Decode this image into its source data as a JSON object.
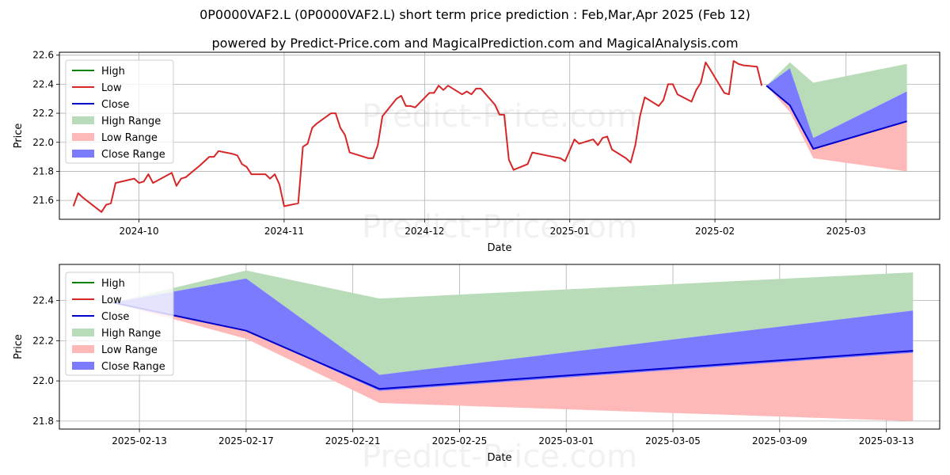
{
  "title": "0P0000VAF2.L (0P0000VAF2.L) short term price prediction : Feb,Mar,Apr 2025 (Feb 12)",
  "subtitle": "powered by Predict-Price.com and MagicalPrediction.com and MagicalAnalysis.com",
  "watermark": "Predict-Price.com",
  "colors": {
    "high": "#008000",
    "low": "#d62728",
    "close": "#0000cc",
    "high_range": "#b8dcb8",
    "low_range": "#ffb8b8",
    "close_range": "#7b7bff"
  },
  "chart_data": [
    {
      "type": "line",
      "xlabel": "Date",
      "ylabel": "Price",
      "xlim": [
        "2024-09-14",
        "2025-03-21"
      ],
      "ylim": [
        21.47,
        22.62
      ],
      "yticks": [
        21.6,
        21.8,
        22.0,
        22.2,
        22.4,
        22.6
      ],
      "ytick_labels": [
        "21.6",
        "21.8",
        "22.0",
        "22.2",
        "22.4",
        "22.6"
      ],
      "xticks": [
        "2024-10-01",
        "2024-11-01",
        "2024-12-01",
        "2025-01-01",
        "2025-02-01",
        "2025-03-01"
      ],
      "xtick_labels": [
        "2024-10",
        "2024-11",
        "2024-12",
        "2025-01",
        "2025-02",
        "2025-03"
      ],
      "legend": [
        "High",
        "Low",
        "Close",
        "High Range",
        "Low Range",
        "Close Range"
      ],
      "legend_position": "upper-left",
      "grid": true,
      "history": {
        "name": "Low",
        "x": [
          "2024-09-17",
          "2024-09-18",
          "2024-09-19",
          "2024-09-23",
          "2024-09-24",
          "2024-09-25",
          "2024-09-26",
          "2024-09-30",
          "2024-10-01",
          "2024-10-02",
          "2024-10-03",
          "2024-10-04",
          "2024-10-08",
          "2024-10-09",
          "2024-10-10",
          "2024-10-11",
          "2024-10-14",
          "2024-10-15",
          "2024-10-16",
          "2024-10-17",
          "2024-10-18",
          "2024-10-21",
          "2024-10-22",
          "2024-10-23",
          "2024-10-24",
          "2024-10-25",
          "2024-10-28",
          "2024-10-29",
          "2024-10-30",
          "2024-10-31",
          "2024-11-01",
          "2024-11-04",
          "2024-11-05",
          "2024-11-06",
          "2024-11-07",
          "2024-11-08",
          "2024-11-11",
          "2024-11-12",
          "2024-11-13",
          "2024-11-14",
          "2024-11-15",
          "2024-11-18",
          "2024-11-19",
          "2024-11-20",
          "2024-11-21",
          "2024-11-22",
          "2024-11-25",
          "2024-11-26",
          "2024-11-27",
          "2024-11-28",
          "2024-11-29",
          "2024-12-02",
          "2024-12-03",
          "2024-12-04",
          "2024-12-05",
          "2024-12-06",
          "2024-12-09",
          "2024-12-10",
          "2024-12-11",
          "2024-12-12",
          "2024-12-13",
          "2024-12-16",
          "2024-12-17",
          "2024-12-18",
          "2024-12-19",
          "2024-12-20",
          "2024-12-23",
          "2024-12-24",
          "2024-12-27",
          "2024-12-30",
          "2024-12-31",
          "2025-01-02",
          "2025-01-03",
          "2025-01-06",
          "2025-01-07",
          "2025-01-08",
          "2025-01-09",
          "2025-01-10",
          "2025-01-13",
          "2025-01-14",
          "2025-01-15",
          "2025-01-16",
          "2025-01-17",
          "2025-01-20",
          "2025-01-21",
          "2025-01-22",
          "2025-01-23",
          "2025-01-24",
          "2025-01-27",
          "2025-01-28",
          "2025-01-29",
          "2025-01-30",
          "2025-01-31",
          "2025-02-03",
          "2025-02-04",
          "2025-02-05",
          "2025-02-06",
          "2025-02-07",
          "2025-02-10",
          "2025-02-11"
        ],
        "y": [
          21.56,
          21.65,
          21.62,
          21.52,
          21.57,
          21.58,
          21.72,
          21.75,
          21.72,
          21.73,
          21.78,
          21.72,
          21.79,
          21.7,
          21.75,
          21.76,
          21.84,
          21.87,
          21.9,
          21.9,
          21.94,
          21.92,
          21.91,
          21.85,
          21.83,
          21.78,
          21.78,
          21.75,
          21.78,
          21.71,
          21.56,
          21.58,
          21.97,
          21.99,
          22.1,
          22.13,
          22.2,
          22.2,
          22.1,
          22.05,
          21.93,
          21.9,
          21.89,
          21.89,
          21.98,
          22.18,
          22.3,
          22.32,
          22.25,
          22.25,
          22.24,
          22.34,
          22.34,
          22.39,
          22.36,
          22.39,
          22.33,
          22.35,
          22.33,
          22.37,
          22.37,
          22.26,
          22.19,
          22.19,
          21.88,
          21.81,
          21.85,
          21.93,
          21.91,
          21.89,
          21.87,
          22.02,
          21.99,
          22.02,
          21.98,
          22.03,
          22.04,
          21.95,
          21.89,
          21.86,
          21.98,
          22.18,
          22.31,
          22.25,
          22.29,
          22.4,
          22.4,
          22.33,
          22.28,
          22.36,
          22.41,
          22.55,
          22.5,
          22.34,
          22.33,
          22.56,
          22.54,
          22.53,
          22.52,
          22.39
        ]
      },
      "forecast": {
        "x": [
          "2025-02-12",
          "2025-02-17",
          "2025-02-22",
          "2025-03-14"
        ],
        "high_range": {
          "upper": [
            22.39,
            22.55,
            22.41,
            22.54
          ],
          "lower": [
            22.39,
            22.51,
            22.03,
            22.35
          ]
        },
        "close_range": {
          "upper": [
            22.39,
            22.51,
            22.03,
            22.35
          ],
          "lower": [
            22.39,
            22.25,
            21.95,
            22.14
          ]
        },
        "low_range": {
          "upper": [
            22.39,
            22.25,
            21.95,
            22.14
          ],
          "lower": [
            22.39,
            22.21,
            21.89,
            21.8
          ]
        }
      }
    },
    {
      "type": "line",
      "xlabel": "Date",
      "ylabel": "Price",
      "xlim": [
        "2025-02-10",
        "2025-03-15"
      ],
      "ylim": [
        21.76,
        22.58
      ],
      "yticks": [
        21.8,
        22.0,
        22.2,
        22.4
      ],
      "ytick_labels": [
        "21.8",
        "22.0",
        "22.2",
        "22.4"
      ],
      "xticks": [
        "2025-02-13",
        "2025-02-17",
        "2025-02-21",
        "2025-02-25",
        "2025-03-01",
        "2025-03-05",
        "2025-03-09",
        "2025-03-13"
      ],
      "xtick_labels": [
        "2025-02-13",
        "2025-02-17",
        "2025-02-21",
        "2025-02-25",
        "2025-03-01",
        "2025-03-05",
        "2025-03-09",
        "2025-03-13"
      ],
      "legend": [
        "High",
        "Low",
        "Close",
        "High Range",
        "Low Range",
        "Close Range"
      ],
      "legend_position": "upper-left",
      "grid": true,
      "series": [
        {
          "name": "Close",
          "x": [
            "2025-02-12",
            "2025-02-17",
            "2025-02-22",
            "2025-03-14"
          ],
          "values": [
            22.39,
            22.25,
            21.96,
            22.15
          ]
        }
      ],
      "forecast": {
        "x": [
          "2025-02-12",
          "2025-02-17",
          "2025-02-22",
          "2025-03-14"
        ],
        "high_range": {
          "upper": [
            22.39,
            22.55,
            22.41,
            22.54
          ],
          "lower": [
            22.39,
            22.51,
            22.03,
            22.35
          ]
        },
        "close_range": {
          "upper": [
            22.39,
            22.51,
            22.03,
            22.35
          ],
          "lower": [
            22.39,
            22.25,
            21.95,
            22.14
          ]
        },
        "low_range": {
          "upper": [
            22.39,
            22.25,
            21.95,
            22.14
          ],
          "lower": [
            22.39,
            22.21,
            21.89,
            21.8
          ]
        }
      }
    }
  ]
}
